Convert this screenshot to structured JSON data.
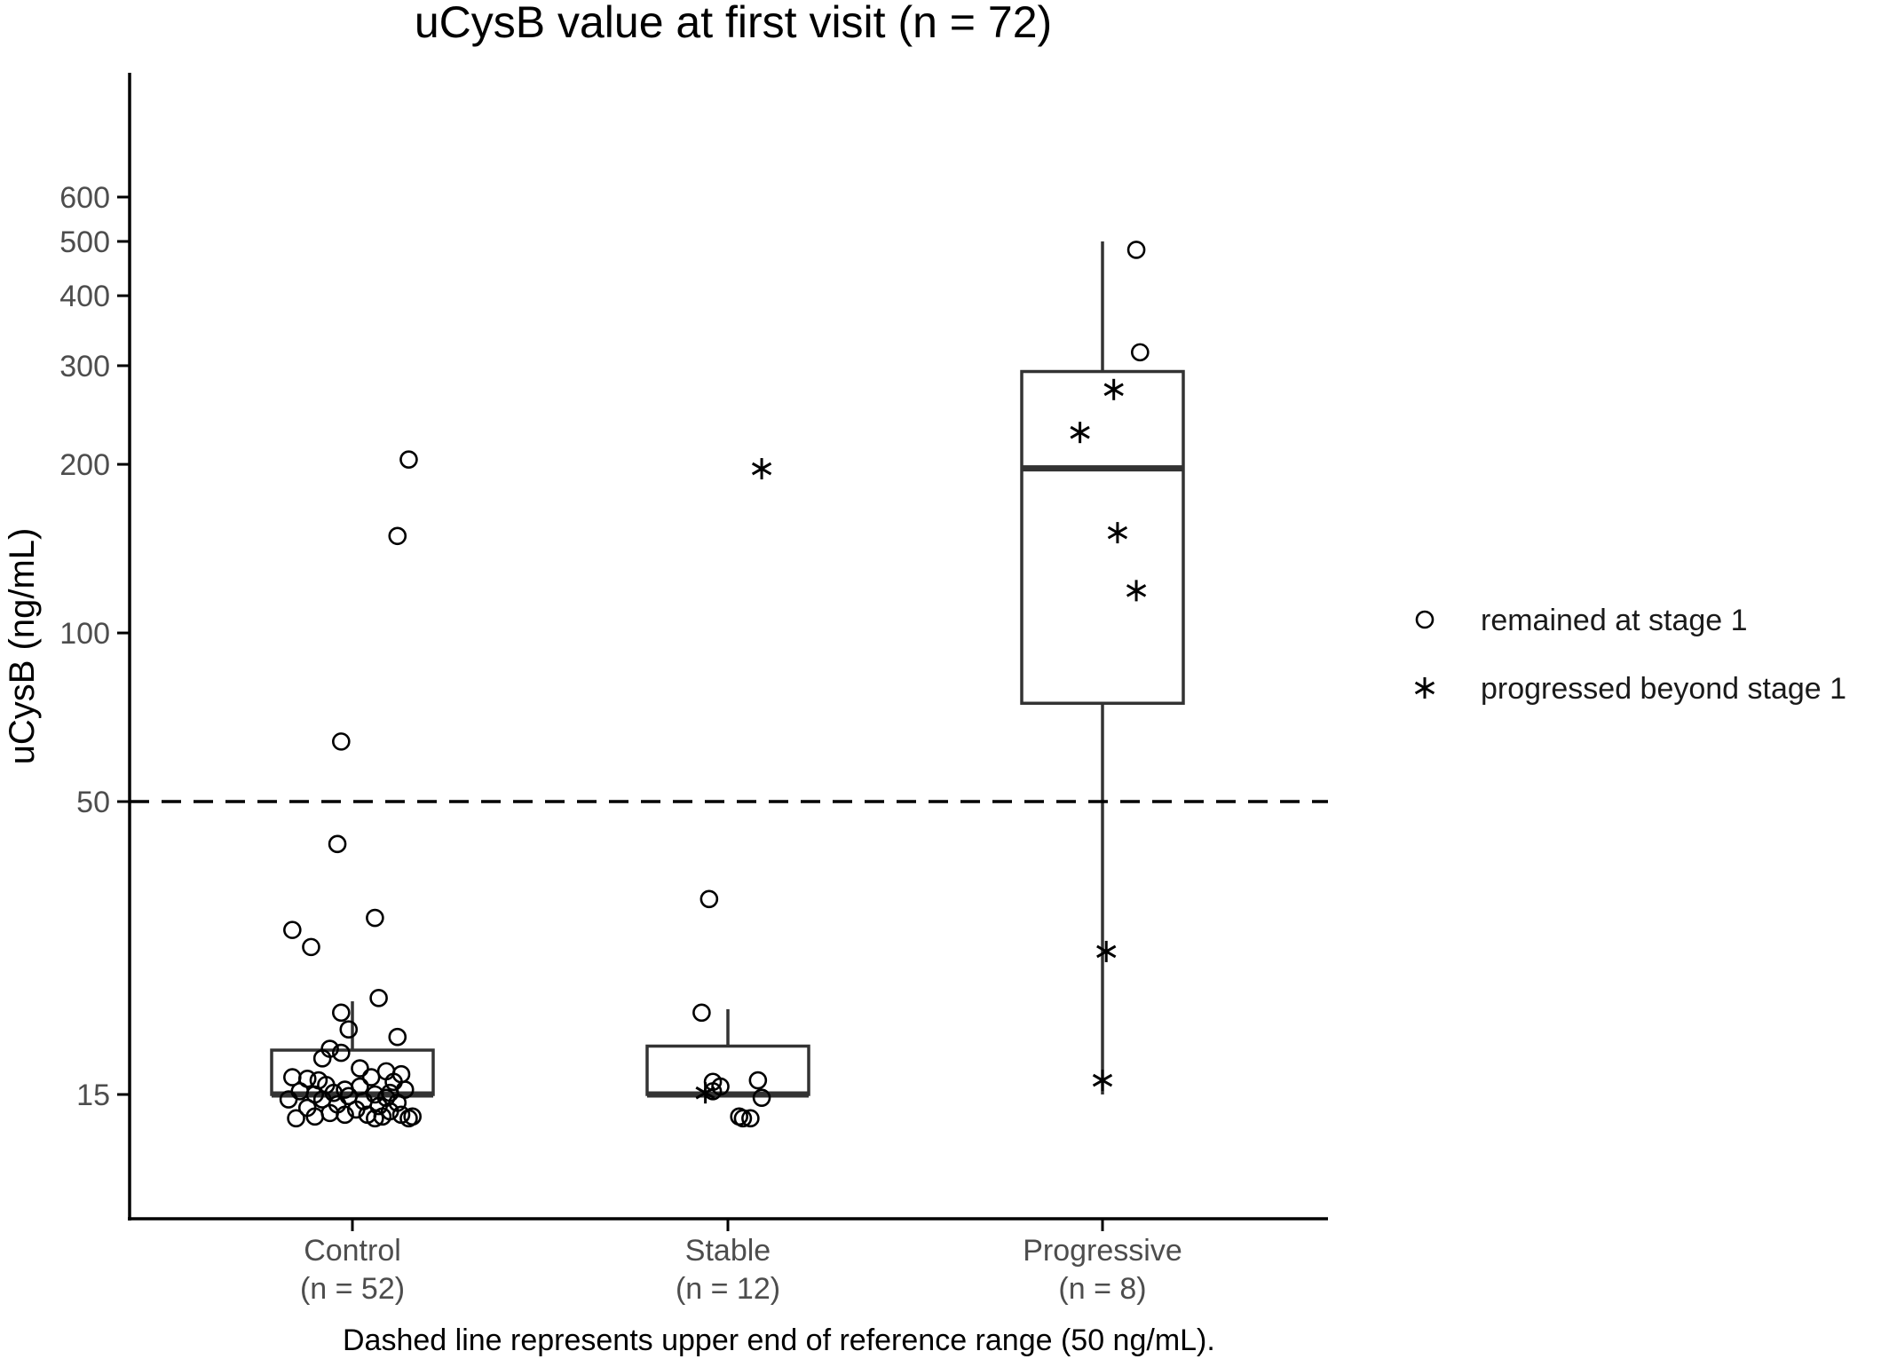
{
  "chart_data": {
    "type": "box",
    "title": "uCysB value at first visit (n = 72)",
    "ylabel": "uCysB (ng/mL)",
    "yscale": "log",
    "ylim": [
      9,
      1000
    ],
    "yticks": [
      15,
      50,
      100,
      200,
      300,
      400,
      500,
      600
    ],
    "categories": [
      {
        "label": "Control",
        "n": "(n = 52)"
      },
      {
        "label": "Stable",
        "n": "(n = 12)"
      },
      {
        "label": "Progressive",
        "n": "(n = 8)"
      }
    ],
    "boxes": [
      {
        "category": "Control",
        "whisker_low": 15,
        "q1": 15,
        "median": 15,
        "q3": 18,
        "whisker_high": 22
      },
      {
        "category": "Stable",
        "whisker_low": 15,
        "q1": 15,
        "median": 15,
        "q3": 18.3,
        "whisker_high": 21.3
      },
      {
        "category": "Progressive",
        "whisker_low": 15,
        "q1": 74.9,
        "median": 196.7,
        "q3": 292.9,
        "whisker_high": 500
      }
    ],
    "legend": {
      "position": "right",
      "items": [
        {
          "shape": "circle",
          "label": "remained at stage 1"
        },
        {
          "shape": "star",
          "label": "progressed beyond stage 1"
        }
      ]
    },
    "reference_line": {
      "y": 50,
      "style": "dashed"
    },
    "caption": "Dashed line represents upper end of reference range (50 ng/mL).",
    "points": [
      {
        "category": "Control",
        "jitter": 0.15,
        "y": 204,
        "shape": "circle"
      },
      {
        "category": "Control",
        "jitter": 0.12,
        "y": 149,
        "shape": "circle"
      },
      {
        "category": "Control",
        "jitter": -0.03,
        "y": 64,
        "shape": "circle"
      },
      {
        "category": "Control",
        "jitter": -0.04,
        "y": 42,
        "shape": "circle"
      },
      {
        "category": "Control",
        "jitter": 0.06,
        "y": 31,
        "shape": "circle"
      },
      {
        "category": "Control",
        "jitter": -0.16,
        "y": 29.5,
        "shape": "circle"
      },
      {
        "category": "Control",
        "jitter": -0.11,
        "y": 27.5,
        "shape": "circle"
      },
      {
        "category": "Control",
        "jitter": 0.07,
        "y": 22.3,
        "shape": "circle"
      },
      {
        "category": "Control",
        "jitter": -0.03,
        "y": 21,
        "shape": "circle"
      },
      {
        "category": "Control",
        "jitter": -0.01,
        "y": 19.6,
        "shape": "circle"
      },
      {
        "category": "Control",
        "jitter": 0.12,
        "y": 19,
        "shape": "circle"
      },
      {
        "category": "Control",
        "jitter": -0.06,
        "y": 18.1,
        "shape": "circle"
      },
      {
        "category": "Control",
        "jitter": -0.03,
        "y": 17.8,
        "shape": "circle"
      },
      {
        "category": "Control",
        "jitter": -0.08,
        "y": 17.4,
        "shape": "circle"
      },
      {
        "category": "Control",
        "jitter": 0.02,
        "y": 16.7,
        "shape": "circle"
      },
      {
        "category": "Control",
        "jitter": 0.09,
        "y": 16.5,
        "shape": "circle"
      },
      {
        "category": "Control",
        "jitter": 0.13,
        "y": 16.3,
        "shape": "circle"
      },
      {
        "category": "Control",
        "jitter": -0.16,
        "y": 16.1,
        "shape": "circle"
      },
      {
        "category": "Control",
        "jitter": -0.12,
        "y": 16,
        "shape": "circle"
      },
      {
        "category": "Control",
        "jitter": -0.09,
        "y": 15.9,
        "shape": "circle"
      },
      {
        "category": "Control",
        "jitter": 0.05,
        "y": 16.1,
        "shape": "circle"
      },
      {
        "category": "Control",
        "jitter": 0.11,
        "y": 15.8,
        "shape": "circle"
      },
      {
        "category": "Control",
        "jitter": -0.07,
        "y": 15.6,
        "shape": "circle"
      },
      {
        "category": "Control",
        "jitter": 0.02,
        "y": 15.5,
        "shape": "circle"
      },
      {
        "category": "Control",
        "jitter": -0.02,
        "y": 15.3,
        "shape": "circle"
      },
      {
        "category": "Control",
        "jitter": 0.14,
        "y": 15.3,
        "shape": "circle"
      },
      {
        "category": "Control",
        "jitter": -0.05,
        "y": 15.1,
        "shape": "circle"
      },
      {
        "category": "Control",
        "jitter": 0.06,
        "y": 15,
        "shape": "circle"
      },
      {
        "category": "Control",
        "jitter": -0.1,
        "y": 15,
        "shape": "circle"
      },
      {
        "category": "Control",
        "jitter": 0.1,
        "y": 15.1,
        "shape": "circle"
      },
      {
        "category": "Control",
        "jitter": -0.14,
        "y": 15.2,
        "shape": "circle"
      },
      {
        "category": "Control",
        "jitter": -0.01,
        "y": 14.9,
        "shape": "circle"
      },
      {
        "category": "Control",
        "jitter": 0.09,
        "y": 14.8,
        "shape": "circle"
      },
      {
        "category": "Control",
        "jitter": -0.17,
        "y": 14.7,
        "shape": "circle"
      },
      {
        "category": "Control",
        "jitter": -0.08,
        "y": 14.7,
        "shape": "circle"
      },
      {
        "category": "Control",
        "jitter": 0.03,
        "y": 14.6,
        "shape": "circle"
      },
      {
        "category": "Control",
        "jitter": 0.12,
        "y": 14.5,
        "shape": "circle"
      },
      {
        "category": "Control",
        "jitter": -0.04,
        "y": 14.4,
        "shape": "circle"
      },
      {
        "category": "Control",
        "jitter": 0.07,
        "y": 14.3,
        "shape": "circle"
      },
      {
        "category": "Control",
        "jitter": -0.12,
        "y": 14.2,
        "shape": "circle"
      },
      {
        "category": "Control",
        "jitter": 0.01,
        "y": 14.1,
        "shape": "circle"
      },
      {
        "category": "Control",
        "jitter": 0.1,
        "y": 14,
        "shape": "circle"
      },
      {
        "category": "Control",
        "jitter": -0.06,
        "y": 13.9,
        "shape": "circle"
      },
      {
        "category": "Control",
        "jitter": 0.04,
        "y": 13.8,
        "shape": "circle"
      },
      {
        "category": "Control",
        "jitter": 0.13,
        "y": 13.8,
        "shape": "circle"
      },
      {
        "category": "Control",
        "jitter": -0.02,
        "y": 13.8,
        "shape": "circle"
      },
      {
        "category": "Control",
        "jitter": 0.08,
        "y": 13.7,
        "shape": "circle"
      },
      {
        "category": "Control",
        "jitter": -0.1,
        "y": 13.7,
        "shape": "circle"
      },
      {
        "category": "Control",
        "jitter": 0.16,
        "y": 13.7,
        "shape": "circle"
      },
      {
        "category": "Control",
        "jitter": -0.15,
        "y": 13.6,
        "shape": "circle"
      },
      {
        "category": "Control",
        "jitter": 0.06,
        "y": 13.6,
        "shape": "circle"
      },
      {
        "category": "Control",
        "jitter": 0.15,
        "y": 13.6,
        "shape": "circle"
      },
      {
        "category": "Stable",
        "jitter": 0.09,
        "y": 196.4,
        "shape": "star"
      },
      {
        "category": "Stable",
        "jitter": -0.05,
        "y": 33.5,
        "shape": "circle"
      },
      {
        "category": "Stable",
        "jitter": -0.07,
        "y": 21,
        "shape": "circle"
      },
      {
        "category": "Stable",
        "jitter": 0.08,
        "y": 15.9,
        "shape": "circle"
      },
      {
        "category": "Stable",
        "jitter": -0.04,
        "y": 15.8,
        "shape": "circle"
      },
      {
        "category": "Stable",
        "jitter": -0.02,
        "y": 15.5,
        "shape": "circle"
      },
      {
        "category": "Stable",
        "jitter": -0.04,
        "y": 15.2,
        "shape": "circle"
      },
      {
        "category": "Stable",
        "jitter": -0.06,
        "y": 15.1,
        "shape": "star"
      },
      {
        "category": "Stable",
        "jitter": 0.09,
        "y": 14.8,
        "shape": "circle"
      },
      {
        "category": "Stable",
        "jitter": 0.03,
        "y": 13.7,
        "shape": "circle"
      },
      {
        "category": "Stable",
        "jitter": 0.04,
        "y": 13.6,
        "shape": "circle"
      },
      {
        "category": "Stable",
        "jitter": 0.06,
        "y": 13.6,
        "shape": "circle"
      },
      {
        "category": "Progressive",
        "jitter": 0.09,
        "y": 483,
        "shape": "circle"
      },
      {
        "category": "Progressive",
        "jitter": 0.1,
        "y": 317,
        "shape": "circle"
      },
      {
        "category": "Progressive",
        "jitter": 0.03,
        "y": 272,
        "shape": "star"
      },
      {
        "category": "Progressive",
        "jitter": -0.06,
        "y": 228,
        "shape": "star"
      },
      {
        "category": "Progressive",
        "jitter": 0.04,
        "y": 151,
        "shape": "star"
      },
      {
        "category": "Progressive",
        "jitter": 0.09,
        "y": 119,
        "shape": "star"
      },
      {
        "category": "Progressive",
        "jitter": 0.01,
        "y": 27,
        "shape": "star"
      },
      {
        "category": "Progressive",
        "jitter": 0.0,
        "y": 15.9,
        "shape": "star"
      }
    ]
  }
}
